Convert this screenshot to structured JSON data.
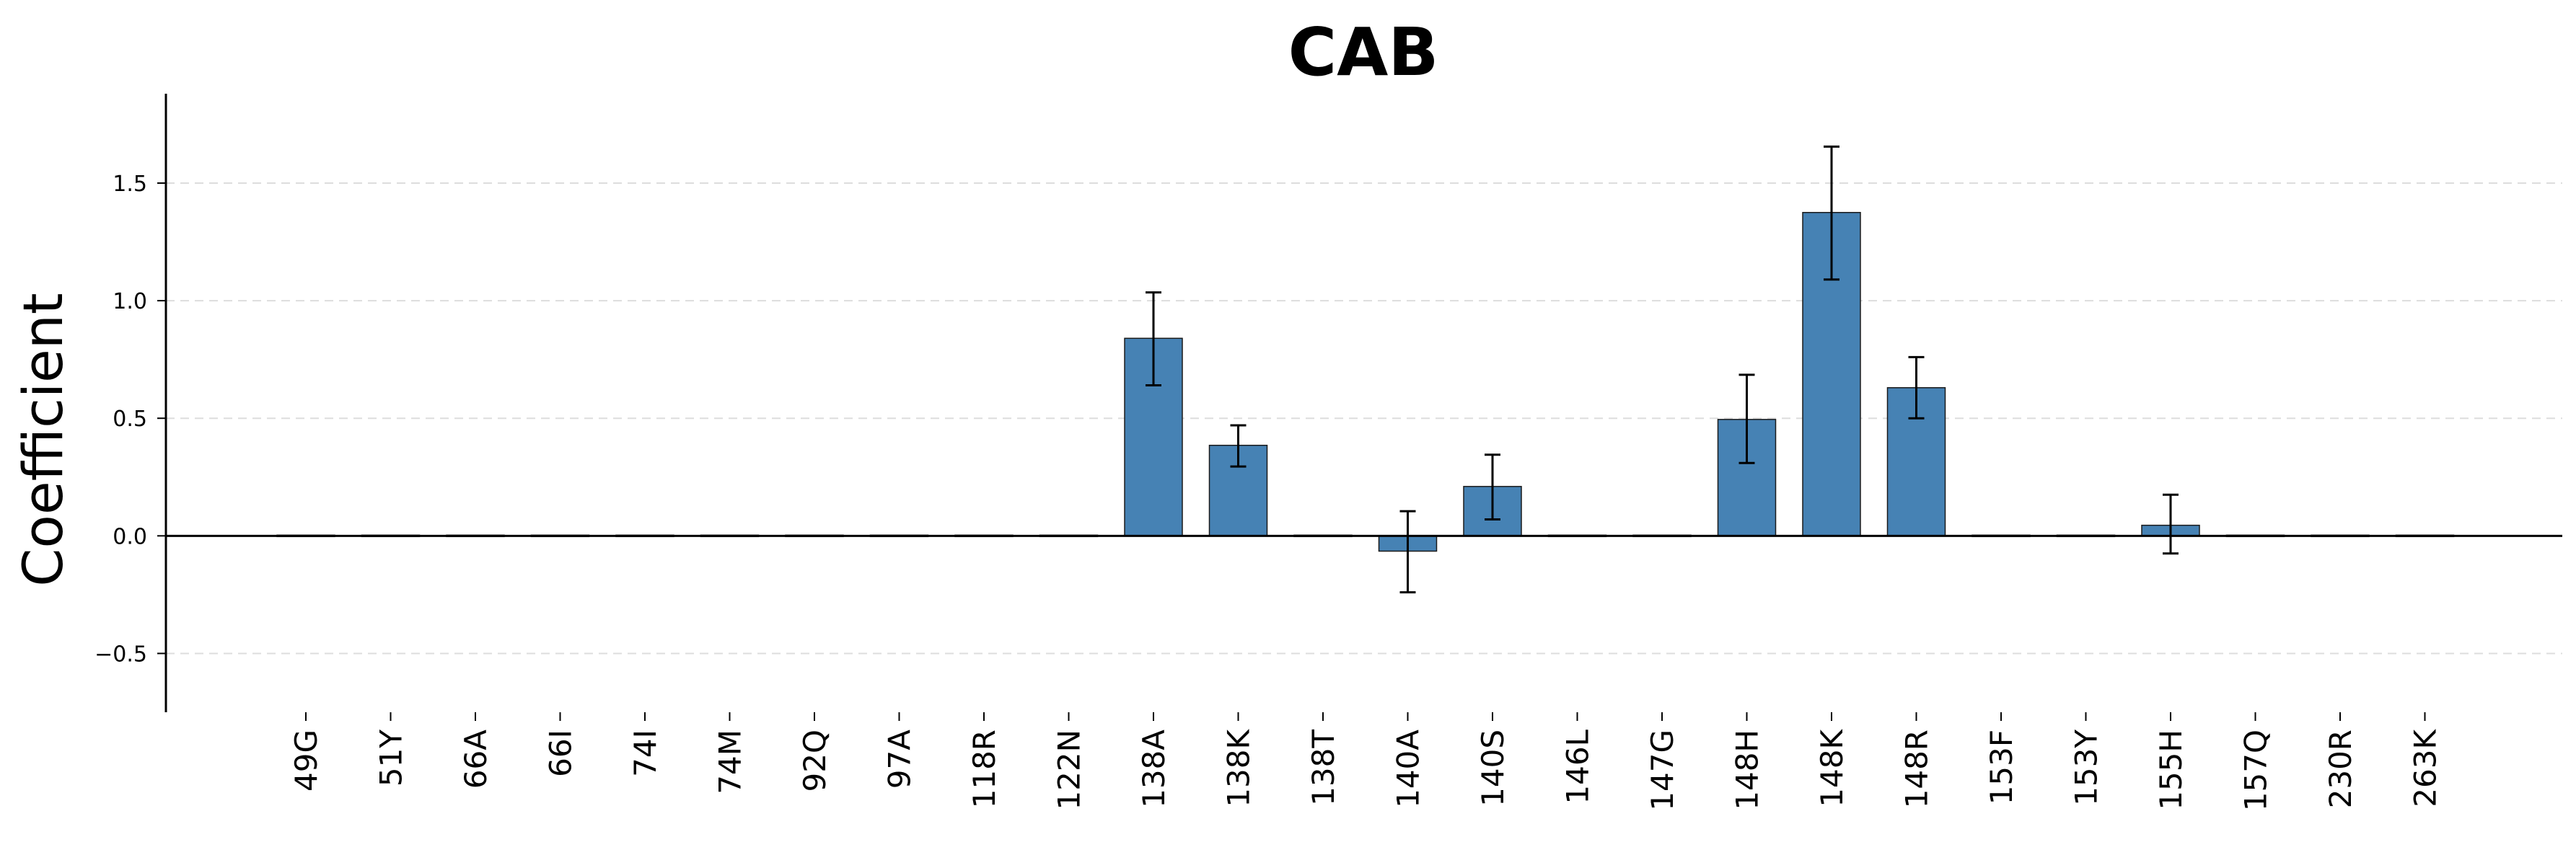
{
  "chart_data": {
    "type": "bar",
    "title": "CAB",
    "xlabel": "",
    "ylabel": "Coefficient",
    "ylim": [
      -0.75,
      1.88
    ],
    "yticks": [
      -0.5,
      0.0,
      0.5,
      1.0,
      1.5
    ],
    "ytick_labels": [
      "−0.5",
      "0.0",
      "0.5",
      "1.0",
      "1.5"
    ],
    "grid": "horizontal-dashed",
    "bar_color": "#4682b4",
    "bar_edge_color": "#1a1a1a",
    "error_color": "#000000",
    "categories": [
      "49G",
      "51Y",
      "66A",
      "66I",
      "74I",
      "74M",
      "92Q",
      "97A",
      "118R",
      "122N",
      "138A",
      "138K",
      "138T",
      "140A",
      "140S",
      "146L",
      "147G",
      "148H",
      "148K",
      "148R",
      "153F",
      "153Y",
      "155H",
      "157Q",
      "230R",
      "263K"
    ],
    "values": [
      0,
      0,
      0,
      0,
      0,
      0,
      0,
      0,
      0,
      0,
      0.84,
      0.385,
      0,
      -0.065,
      0.21,
      0,
      0,
      0.495,
      1.375,
      0.63,
      0,
      0,
      0.045,
      0,
      0,
      0
    ],
    "error_lower": [
      null,
      null,
      null,
      null,
      null,
      null,
      null,
      null,
      null,
      null,
      0.64,
      0.295,
      null,
      -0.24,
      0.07,
      null,
      null,
      0.31,
      1.09,
      0.5,
      null,
      null,
      -0.075,
      null,
      null,
      null
    ],
    "error_upper": [
      null,
      null,
      null,
      null,
      null,
      null,
      null,
      null,
      null,
      null,
      1.035,
      0.47,
      null,
      0.105,
      0.345,
      null,
      null,
      0.685,
      1.655,
      0.76,
      null,
      null,
      0.175,
      null,
      null,
      null
    ]
  }
}
